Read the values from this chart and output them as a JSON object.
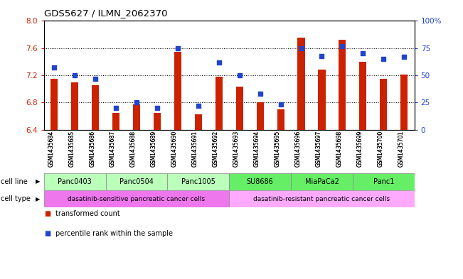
{
  "title": "GDS5627 / ILMN_2062370",
  "samples": [
    "GSM1435684",
    "GSM1435685",
    "GSM1435686",
    "GSM1435687",
    "GSM1435688",
    "GSM1435689",
    "GSM1435690",
    "GSM1435691",
    "GSM1435692",
    "GSM1435693",
    "GSM1435694",
    "GSM1435695",
    "GSM1435696",
    "GSM1435697",
    "GSM1435698",
    "GSM1435699",
    "GSM1435700",
    "GSM1435701"
  ],
  "transformed_count": [
    7.15,
    7.1,
    7.05,
    6.65,
    6.77,
    6.65,
    7.55,
    6.63,
    7.18,
    7.03,
    6.8,
    6.7,
    7.75,
    7.28,
    7.72,
    7.4,
    7.15,
    7.21
  ],
  "percentile_rank": [
    57,
    50,
    47,
    20,
    25,
    20,
    75,
    22,
    62,
    50,
    33,
    23,
    75,
    68,
    77,
    70,
    65,
    67
  ],
  "cell_lines": [
    {
      "name": "Panc0403",
      "start": 0,
      "end": 3,
      "color": "#bbffbb"
    },
    {
      "name": "Panc0504",
      "start": 3,
      "end": 6,
      "color": "#bbffbb"
    },
    {
      "name": "Panc1005",
      "start": 6,
      "end": 9,
      "color": "#bbffbb"
    },
    {
      "name": "SU8686",
      "start": 9,
      "end": 12,
      "color": "#66ee66"
    },
    {
      "name": "MiaPaCa2",
      "start": 12,
      "end": 15,
      "color": "#66ee66"
    },
    {
      "name": "Panc1",
      "start": 15,
      "end": 18,
      "color": "#66ee66"
    }
  ],
  "cell_types": [
    {
      "name": "dasatinib-sensitive pancreatic cancer cells",
      "start": 0,
      "end": 9,
      "color": "#ee77ee"
    },
    {
      "name": "dasatinib-resistant pancreatic cancer cells",
      "start": 9,
      "end": 18,
      "color": "#ffaaff"
    }
  ],
  "ylim_left": [
    6.4,
    8.0
  ],
  "ylim_right": [
    0,
    100
  ],
  "yticks_left": [
    6.4,
    6.8,
    7.2,
    7.6,
    8.0
  ],
  "yticks_right": [
    0,
    25,
    50,
    75,
    100
  ],
  "ytick_labels_right": [
    "0",
    "25",
    "50",
    "75",
    "100%"
  ],
  "bar_color": "#cc2200",
  "dot_color": "#2244cc",
  "bar_width": 0.35,
  "bg_color": "#ffffff"
}
